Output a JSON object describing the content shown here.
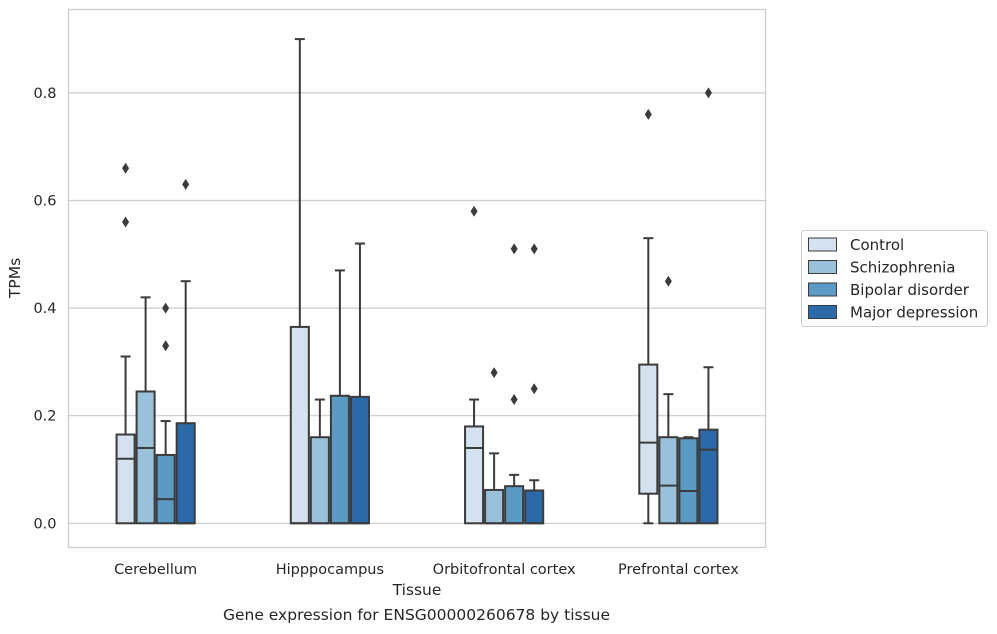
{
  "caption": "Gene expression for ENSG00000260678 by tissue",
  "chart_data": {
    "type": "box",
    "xlabel": "Tissue",
    "ylabel": "TPMs",
    "ylim": [
      -0.045,
      0.955
    ],
    "yticks": [
      0.0,
      0.2,
      0.4,
      0.6,
      0.8
    ],
    "ytick_labels": [
      "0.0",
      "0.2",
      "0.4",
      "0.6",
      "0.8"
    ],
    "grid": true,
    "legend_position": "right",
    "categories": [
      "Cerebellum",
      "Hipppocampus",
      "Orbitofrontal cortex",
      "Prefrontal cortex"
    ],
    "series": [
      {
        "name": "Control",
        "color": "#d4e2f0",
        "boxes": [
          {
            "whisker_low": 0.0,
            "q1": 0.0,
            "median": 0.12,
            "q3": 0.165,
            "whisker_high": 0.31,
            "outliers": [
              0.56,
              0.66
            ]
          },
          {
            "whisker_low": 0.0,
            "q1": 0.0,
            "median": 0.0,
            "q3": 0.365,
            "whisker_high": 0.9,
            "outliers": []
          },
          {
            "whisker_low": 0.0,
            "q1": 0.0,
            "median": 0.14,
            "q3": 0.18,
            "whisker_high": 0.23,
            "outliers": [
              0.58
            ]
          },
          {
            "whisker_low": 0.0,
            "q1": 0.055,
            "median": 0.15,
            "q3": 0.295,
            "whisker_high": 0.53,
            "outliers": [
              0.76
            ]
          }
        ]
      },
      {
        "name": "Schizophrenia",
        "color": "#9ac1da",
        "boxes": [
          {
            "whisker_low": 0.0,
            "q1": 0.0,
            "median": 0.14,
            "q3": 0.245,
            "whisker_high": 0.42,
            "outliers": []
          },
          {
            "whisker_low": 0.0,
            "q1": 0.0,
            "median": 0.0,
            "q3": 0.16,
            "whisker_high": 0.23,
            "outliers": []
          },
          {
            "whisker_low": 0.0,
            "q1": 0.0,
            "median": 0.0,
            "q3": 0.062,
            "whisker_high": 0.13,
            "outliers": [
              0.28
            ]
          },
          {
            "whisker_low": 0.0,
            "q1": 0.0,
            "median": 0.07,
            "q3": 0.16,
            "whisker_high": 0.24,
            "outliers": [
              0.45
            ]
          }
        ]
      },
      {
        "name": "Bipolar disorder",
        "color": "#5b9ac5",
        "boxes": [
          {
            "whisker_low": 0.0,
            "q1": 0.0,
            "median": 0.045,
            "q3": 0.127,
            "whisker_high": 0.19,
            "outliers": [
              0.33,
              0.4
            ]
          },
          {
            "whisker_low": 0.0,
            "q1": 0.0,
            "median": 0.0,
            "q3": 0.237,
            "whisker_high": 0.47,
            "outliers": []
          },
          {
            "whisker_low": 0.0,
            "q1": 0.0,
            "median": 0.0,
            "q3": 0.069,
            "whisker_high": 0.09,
            "outliers": [
              0.23,
              0.51
            ]
          },
          {
            "whisker_low": 0.0,
            "q1": 0.0,
            "median": 0.06,
            "q3": 0.158,
            "whisker_high": 0.16,
            "outliers": []
          }
        ]
      },
      {
        "name": "Major depression",
        "color": "#2b69a9",
        "boxes": [
          {
            "whisker_low": 0.0,
            "q1": 0.0,
            "median": 0.0,
            "q3": 0.186,
            "whisker_high": 0.45,
            "outliers": [
              0.63
            ]
          },
          {
            "whisker_low": 0.0,
            "q1": 0.0,
            "median": 0.0,
            "q3": 0.235,
            "whisker_high": 0.52,
            "outliers": []
          },
          {
            "whisker_low": 0.0,
            "q1": 0.0,
            "median": 0.0,
            "q3": 0.061,
            "whisker_high": 0.08,
            "outliers": [
              0.25,
              0.51
            ]
          },
          {
            "whisker_low": 0.0,
            "q1": 0.0,
            "median": 0.137,
            "q3": 0.174,
            "whisker_high": 0.29,
            "outliers": [
              0.8
            ]
          }
        ]
      }
    ]
  }
}
